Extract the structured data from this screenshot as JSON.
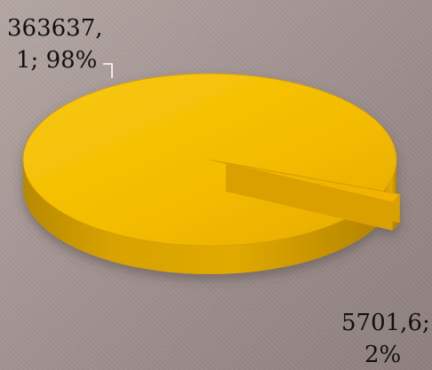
{
  "chart_data": {
    "type": "pie",
    "title": "",
    "series": [
      {
        "name": "",
        "values": [
          363637.1,
          5701.6
        ]
      }
    ],
    "slices": [
      {
        "value": 363637.1,
        "percent": 98,
        "label_lines": [
          "363637,",
          "1; 98%"
        ],
        "color": "#f4bf00"
      },
      {
        "value": 5701.6,
        "percent": 2,
        "label_lines": [
          "5701,6;",
          "2%"
        ],
        "color": "#f0b400"
      }
    ],
    "style": "3d-exploded",
    "legend": "none"
  }
}
